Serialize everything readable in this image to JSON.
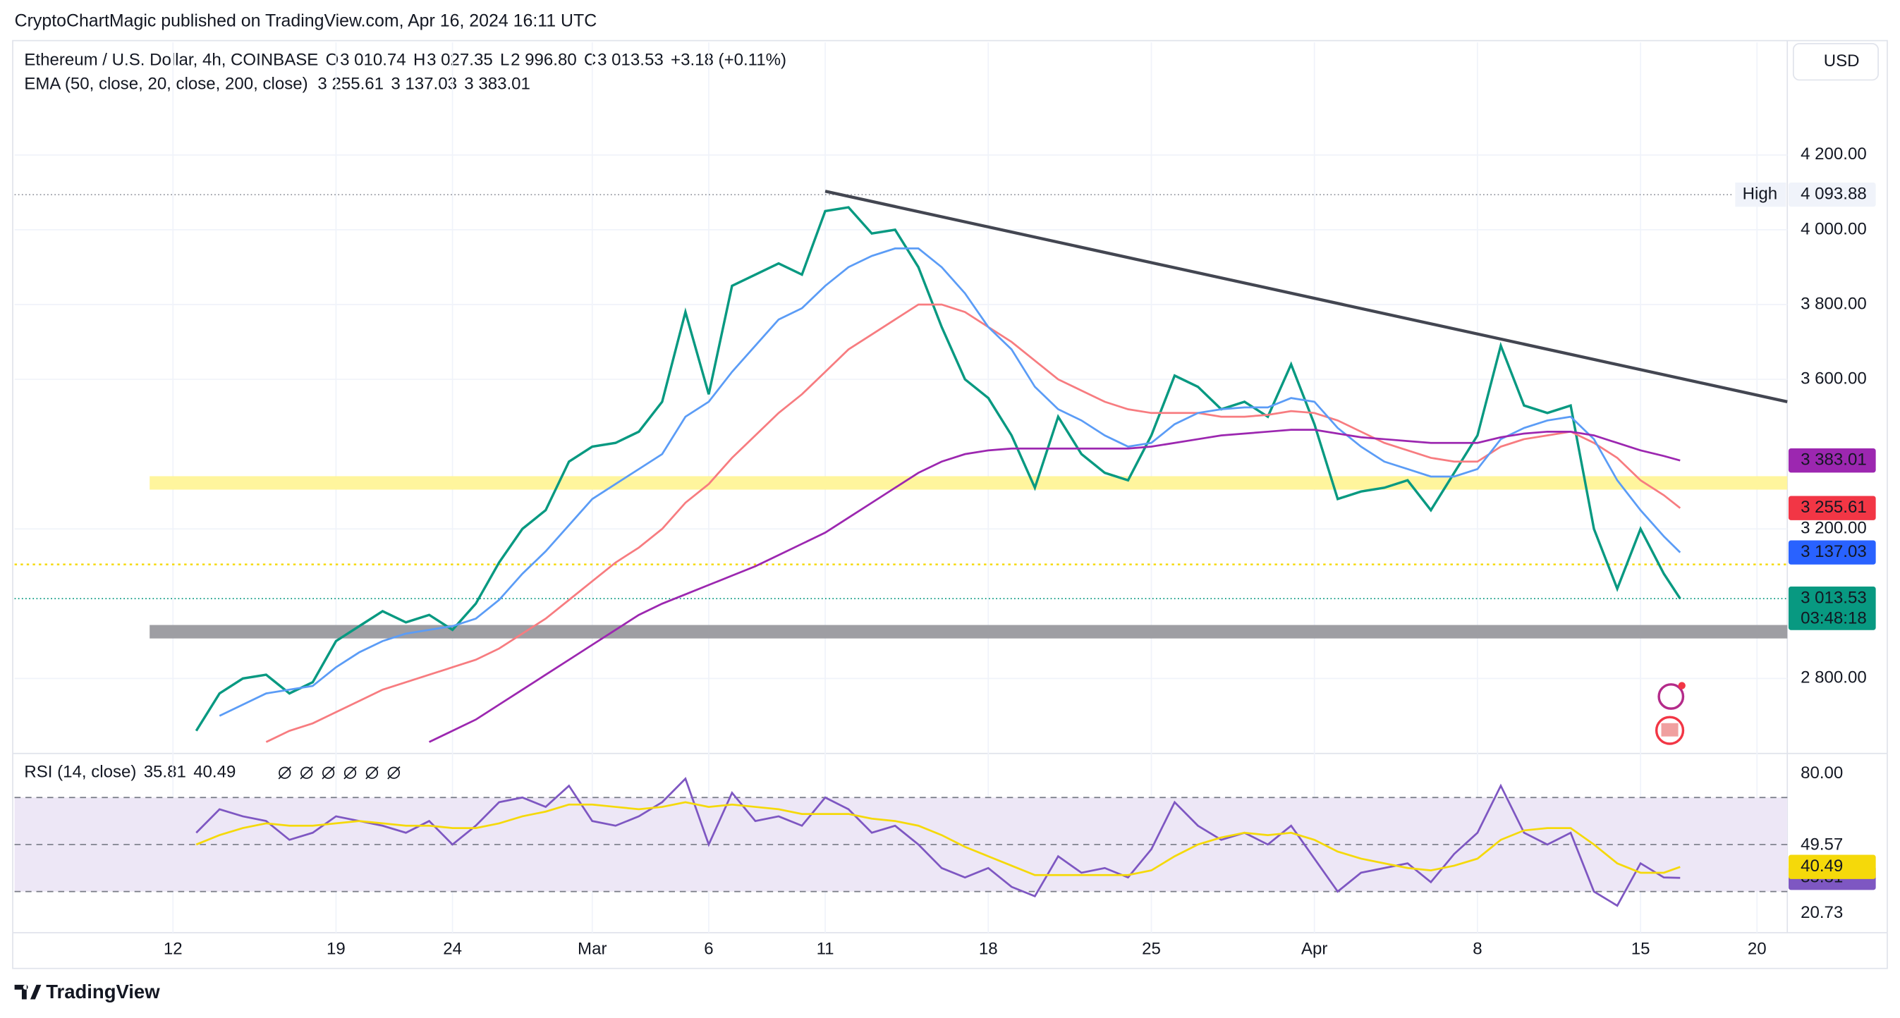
{
  "header": {
    "publisher": "CryptoChartMagic published on TradingView.com, Apr 16, 2024 16:11 UTC",
    "currency": "USD"
  },
  "legend": {
    "symbol": "Ethereum / U.S. Dollar, 4h, COINBASE",
    "ohlc": [
      {
        "label": "O",
        "value": "3 010.74"
      },
      {
        "label": "H",
        "value": "3 027.35"
      },
      {
        "label": "L",
        "value": "2 996.80"
      },
      {
        "label": "C",
        "value": "3 013.53"
      }
    ],
    "change": "+3.18 (+0.11%)",
    "ema_title": "EMA (50, close, 20, close, 200, close)",
    "ema_values": [
      "3 255.61",
      "3 137.03",
      "3 383.01"
    ],
    "rsi_title": "RSI (14, close)",
    "rsi_values": [
      "35.81",
      "40.49"
    ]
  },
  "chart_data": [
    {
      "type": "line",
      "x": [
        1,
        2,
        3,
        4,
        5,
        6,
        7,
        8,
        9,
        10,
        11,
        12,
        13,
        14,
        15,
        16,
        17,
        18,
        19,
        20,
        21,
        22,
        23,
        24,
        25,
        26,
        27,
        28,
        29,
        30,
        31,
        32,
        33,
        34,
        35,
        36,
        37,
        38,
        39,
        40,
        41,
        42,
        43,
        44,
        45,
        46,
        47,
        48,
        49,
        50,
        51,
        52,
        53,
        54,
        55,
        56,
        57,
        58,
        59,
        60,
        61,
        62,
        63,
        64,
        64.7
      ],
      "xlim": [
        -6.8,
        69.3
      ],
      "xticks": [
        {
          "value": 0,
          "label": "12"
        },
        {
          "value": 7,
          "label": "19"
        },
        {
          "value": 12,
          "label": "24"
        },
        {
          "value": 18,
          "label": "Mar"
        },
        {
          "value": 23,
          "label": "6"
        },
        {
          "value": 28,
          "label": "11"
        },
        {
          "value": 35,
          "label": "18"
        },
        {
          "value": 42,
          "label": "25"
        },
        {
          "value": 49,
          "label": "Apr"
        },
        {
          "value": 56,
          "label": "8"
        },
        {
          "value": 63,
          "label": "15"
        },
        {
          "value": 68,
          "label": "20"
        }
      ],
      "ylim": [
        2606,
        4501
      ],
      "yticks": [
        {
          "value": 2800,
          "label": "2 800.00"
        },
        {
          "value": 3200,
          "label": "3 200.00"
        },
        {
          "value": 3600,
          "label": "3 600.00"
        },
        {
          "value": 3800,
          "label": "3 800.00"
        },
        {
          "value": 4000,
          "label": "4 000.00"
        },
        {
          "value": 4200,
          "label": "4 200.00"
        }
      ],
      "series": [
        {
          "color": "#089981",
          "values": [
            2660,
            2760,
            2800,
            2810,
            2760,
            2790,
            2900,
            2940,
            2980,
            2950,
            2970,
            2930,
            3000,
            3110,
            3200,
            3250,
            3380,
            3420,
            3430,
            3460,
            3540,
            3780,
            3560,
            3850,
            3880,
            3910,
            3880,
            4050,
            4060,
            3990,
            4000,
            3900,
            3740,
            3600,
            3550,
            3450,
            3310,
            3500,
            3400,
            3350,
            3330,
            3450,
            3610,
            3580,
            3520,
            3540,
            3500,
            3640,
            3480,
            3280,
            3300,
            3310,
            3330,
            3250,
            3350,
            3450,
            3690,
            3530,
            3510,
            3530,
            3200,
            3040,
            3200,
            3080,
            3013.53
          ]
        },
        {
          "color": "#f77c80",
          "values": [
            null,
            null,
            null,
            2630,
            2660,
            2680,
            2710,
            2740,
            2770,
            2790,
            2810,
            2830,
            2850,
            2880,
            2920,
            2960,
            3010,
            3060,
            3110,
            3150,
            3200,
            3270,
            3320,
            3390,
            3450,
            3510,
            3560,
            3620,
            3680,
            3720,
            3760,
            3800,
            3800,
            3780,
            3740,
            3700,
            3650,
            3600,
            3570,
            3540,
            3520,
            3510,
            3510,
            3510,
            3500,
            3500,
            3505,
            3515,
            3510,
            3490,
            3460,
            3430,
            3410,
            3390,
            3380,
            3380,
            3420,
            3440,
            3450,
            3460,
            3430,
            3390,
            3330,
            3290,
            3255.61
          ]
        },
        {
          "color": "#5b9cf6",
          "values": [
            null,
            2700,
            2730,
            2760,
            2770,
            2780,
            2830,
            2870,
            2900,
            2920,
            2930,
            2940,
            2960,
            3010,
            3080,
            3140,
            3210,
            3280,
            3320,
            3360,
            3400,
            3500,
            3540,
            3620,
            3690,
            3760,
            3790,
            3850,
            3900,
            3930,
            3950,
            3950,
            3900,
            3830,
            3740,
            3680,
            3580,
            3520,
            3490,
            3450,
            3420,
            3430,
            3480,
            3510,
            3520,
            3525,
            3525,
            3550,
            3540,
            3470,
            3420,
            3380,
            3360,
            3340,
            3340,
            3360,
            3440,
            3470,
            3490,
            3500,
            3440,
            3330,
            3250,
            3180,
            3137.03
          ]
        },
        {
          "color": "#9c27b0",
          "values": [
            null,
            null,
            null,
            null,
            null,
            null,
            null,
            null,
            null,
            null,
            2630,
            2660,
            2690,
            2730,
            2770,
            2810,
            2850,
            2890,
            2930,
            2970,
            3000,
            3025,
            3050,
            3075,
            3100,
            3130,
            3160,
            3190,
            3230,
            3270,
            3310,
            3350,
            3380,
            3400,
            3410,
            3415,
            3415,
            3415,
            3415,
            3415,
            3415,
            3420,
            3430,
            3440,
            3450,
            3455,
            3460,
            3465,
            3465,
            3455,
            3445,
            3440,
            3435,
            3430,
            3430,
            3430,
            3445,
            3455,
            3460,
            3460,
            3450,
            3430,
            3410,
            3395,
            3383.01
          ]
        }
      ],
      "high": {
        "label": "High",
        "value": 4093.88,
        "value_label": "4 093.88"
      },
      "last": {
        "value": 3013.53,
        "value_label": "3 013.53",
        "countdown": "03:48:18"
      },
      "alert_line": 3105,
      "zones": [
        {
          "x_start": -1,
          "from": 3305,
          "to": 3341,
          "color": "#fff59d"
        },
        {
          "x_start": -1,
          "from": 2907,
          "to": 2943,
          "color": "#9e9ea3"
        }
      ],
      "trendline": {
        "x": [
          28,
          69.3
        ],
        "y": [
          4103,
          3540
        ],
        "color": "#434651"
      },
      "grid": true
    },
    {
      "type": "line",
      "x": [
        1,
        2,
        3,
        4,
        5,
        6,
        7,
        8,
        9,
        10,
        11,
        12,
        13,
        14,
        15,
        16,
        17,
        18,
        19,
        20,
        21,
        22,
        23,
        24,
        25,
        26,
        27,
        28,
        29,
        30,
        31,
        32,
        33,
        34,
        35,
        36,
        37,
        38,
        39,
        40,
        41,
        42,
        43,
        44,
        45,
        46,
        47,
        48,
        49,
        50,
        51,
        52,
        53,
        54,
        55,
        56,
        57,
        58,
        59,
        60,
        61,
        62,
        63,
        64,
        64.7
      ],
      "xlim": [
        -6.8,
        69.3
      ],
      "ylim": [
        12.5,
        87.2
      ],
      "yticks": [
        {
          "value": 80,
          "label": "80.00"
        },
        {
          "value": 49.57,
          "label": "49.57"
        },
        {
          "value": 20.73,
          "label": "20.73"
        }
      ],
      "bands": [
        30,
        50,
        70
      ],
      "band_fill": "#ede7f6",
      "series": [
        {
          "color": "#7e57c2",
          "values": [
            55,
            65,
            62,
            60,
            52,
            55,
            62,
            60,
            58,
            55,
            60,
            50,
            58,
            68,
            70,
            66,
            75,
            60,
            58,
            62,
            68,
            78,
            50,
            72,
            60,
            62,
            58,
            70,
            65,
            55,
            58,
            50,
            40,
            36,
            40,
            32,
            28,
            45,
            38,
            40,
            36,
            48,
            68,
            58,
            52,
            55,
            50,
            58,
            44,
            30,
            38,
            40,
            42,
            34,
            46,
            55,
            75,
            55,
            50,
            55,
            30,
            24,
            42,
            36,
            35.81
          ]
        },
        {
          "color": "#f5d90a",
          "values": [
            50,
            54,
            57,
            59,
            58,
            58,
            59,
            60,
            59,
            58,
            58,
            57,
            57,
            59,
            62,
            64,
            67,
            67,
            66,
            65,
            66,
            68,
            66,
            67,
            66,
            65,
            63,
            63,
            63,
            61,
            60,
            58,
            54,
            49,
            45,
            41,
            37,
            37,
            37,
            37,
            37,
            39,
            45,
            50,
            53,
            55,
            54,
            55,
            52,
            47,
            44,
            42,
            40,
            39,
            41,
            44,
            52,
            56,
            57,
            57,
            50,
            42,
            38,
            38,
            40.49
          ]
        }
      ]
    }
  ],
  "footer": {
    "brand": "TradingView"
  }
}
